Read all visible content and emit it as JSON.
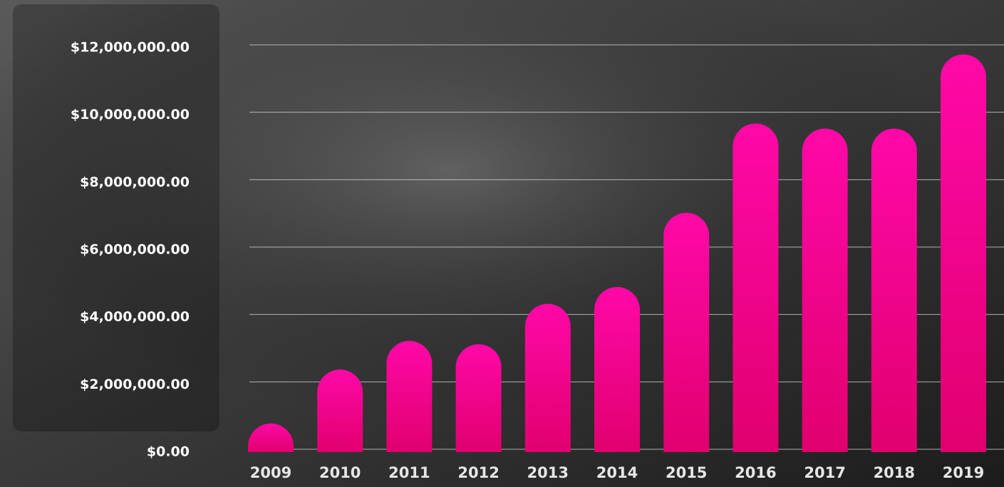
{
  "chart_data": {
    "type": "bar",
    "categories": [
      "2009",
      "2010",
      "2011",
      "2012",
      "2013",
      "2014",
      "2015",
      "2016",
      "2017",
      "2018",
      "2019"
    ],
    "values": [
      850000,
      2450000,
      3300000,
      3200000,
      4400000,
      4900000,
      7100000,
      9750000,
      9600000,
      9600000,
      11800000
    ],
    "color": "#ff08a8",
    "ylim": [
      0,
      12000000
    ],
    "yticks": [
      {
        "value": 0,
        "label": "$0.00"
      },
      {
        "value": 2000000,
        "label": "$2,000,000.00"
      },
      {
        "value": 4000000,
        "label": "$4,000,000.00"
      },
      {
        "value": 6000000,
        "label": "$6,000,000.00"
      },
      {
        "value": 8000000,
        "label": "$8,000,000.00"
      },
      {
        "value": 10000000,
        "label": "$10,000,000.00"
      },
      {
        "value": 12000000,
        "label": "$12,000,000.00"
      }
    ],
    "grid": true
  }
}
